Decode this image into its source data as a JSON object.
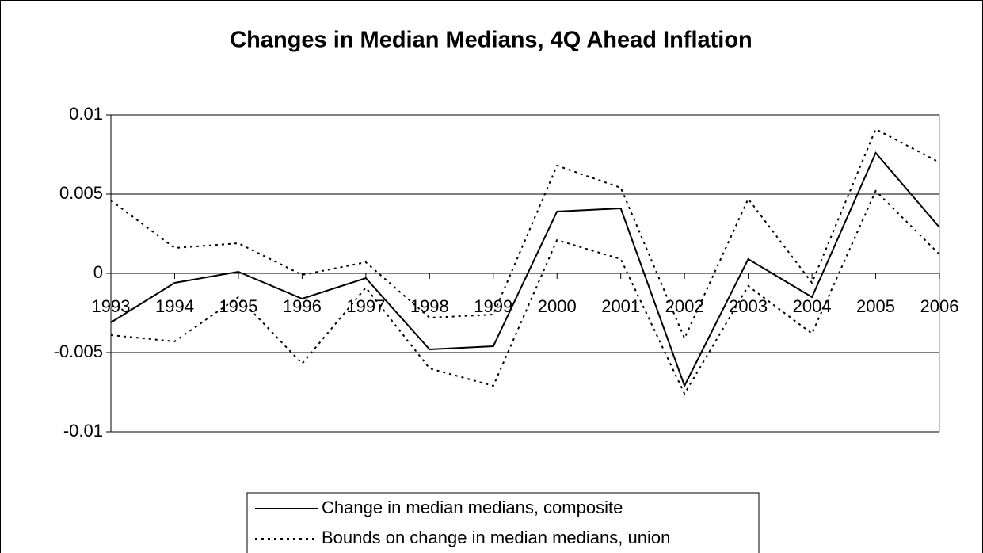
{
  "chart_data": {
    "type": "line",
    "title": "Changes in Median Medians, 4Q Ahead Inflation",
    "categories": [
      "1993",
      "1994",
      "1995",
      "1996",
      "1997",
      "1998",
      "1999",
      "2000",
      "2001",
      "2002",
      "2003",
      "2004",
      "2005",
      "2006"
    ],
    "series": [
      {
        "name": "Change in median medians, composite",
        "color": "#000000",
        "style": "solid",
        "values": [
          -0.0031,
          -0.0006,
          0.0001,
          -0.0016,
          -0.0003,
          -0.0048,
          -0.0046,
          0.0039,
          0.0041,
          -0.0071,
          0.0009,
          -0.0015,
          0.0076,
          0.0029
        ]
      },
      {
        "name": "Bounds on change in median medians, union",
        "color": "#000000",
        "style": "dotted",
        "values": [
          0.0046,
          0.0016,
          0.0019,
          -0.0001,
          0.0007,
          -0.0028,
          -0.0026,
          0.0068,
          0.0054,
          -0.0041,
          0.0047,
          -0.0006,
          0.0091,
          0.007
        ],
        "lower": [
          -0.0039,
          -0.0043,
          -0.0015,
          -0.0057,
          -0.0009,
          -0.006,
          -0.0071,
          0.0021,
          0.0009,
          -0.0076,
          -0.0008,
          -0.0038,
          0.0052,
          0.0012
        ]
      }
    ],
    "ylim": [
      -0.01,
      0.01
    ],
    "yticks": [
      0.01,
      0.005,
      0,
      -0.005,
      -0.01
    ],
    "grid": true,
    "legend": "bottom"
  }
}
